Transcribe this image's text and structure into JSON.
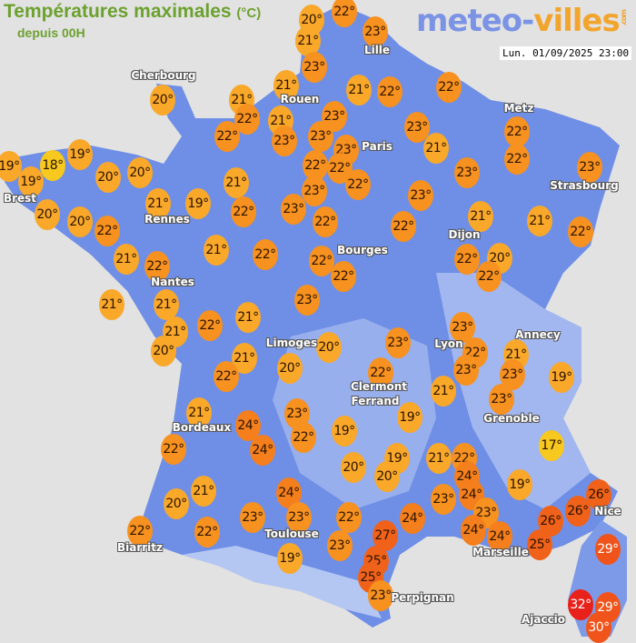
{
  "header": {
    "title": "Températures maximales",
    "unit": "(°C)",
    "subtitle": "depuis 00H",
    "logo_main": "meteo-",
    "logo_accent": "villes",
    "logo_suffix": ".com",
    "timestamp": "Lun. 01/09/2025 23:00"
  },
  "colors": {
    "background": "#e2e2e2",
    "land": "#6f8fe6",
    "title_green": "#6ca12f",
    "temp_17_18": "#f7c81e",
    "temp_19_21": "#f9a82a",
    "temp_22_23": "#f7911f",
    "temp_24": "#f47f1c",
    "temp_25_27": "#f0621a",
    "temp_29_30": "#f0541a",
    "temp_32": "#e8221a"
  },
  "cities": [
    "Lille",
    "Cherbourg",
    "Rouen",
    "Paris",
    "Metz",
    "Strasbourg",
    "Brest",
    "Rennes",
    "Dijon",
    "Bourges",
    "Nantes",
    "Annecy",
    "Limoges",
    "Lyon",
    "Clermont",
    "Ferrand",
    "Grenoble",
    "Bordeaux",
    "Nice",
    "Toulouse",
    "Biarritz",
    "Marseille",
    "Perpignan",
    "Ajaccio"
  ],
  "temperatures": [
    20,
    22,
    21,
    23,
    23,
    21,
    21,
    22,
    22,
    20,
    21,
    22,
    21,
    22,
    23,
    23,
    23,
    23,
    23,
    22,
    22,
    22,
    22,
    21,
    22,
    23,
    23,
    19,
    19,
    19,
    18,
    20,
    20,
    21,
    23,
    23,
    20,
    21,
    19,
    22,
    23,
    20,
    22,
    22,
    22,
    21,
    21,
    22,
    21,
    22,
    21,
    22,
    22,
    22,
    22,
    20,
    22,
    21,
    21,
    23,
    21,
    22,
    21,
    20,
    20,
    23,
    23,
    22,
    23,
    21,
    23,
    19,
    21,
    22,
    20,
    22,
    21,
    23,
    21,
    23,
    24,
    22,
    19,
    19,
    22,
    17,
    19,
    20,
    20,
    21,
    22,
    24,
    24,
    21,
    20,
    24,
    23,
    24,
    19,
    26,
    26,
    23,
    23,
    22,
    24,
    23,
    24,
    24,
    26,
    22,
    22,
    27,
    29,
    23,
    25,
    19,
    25,
    25,
    23,
    32,
    29,
    30
  ]
}
